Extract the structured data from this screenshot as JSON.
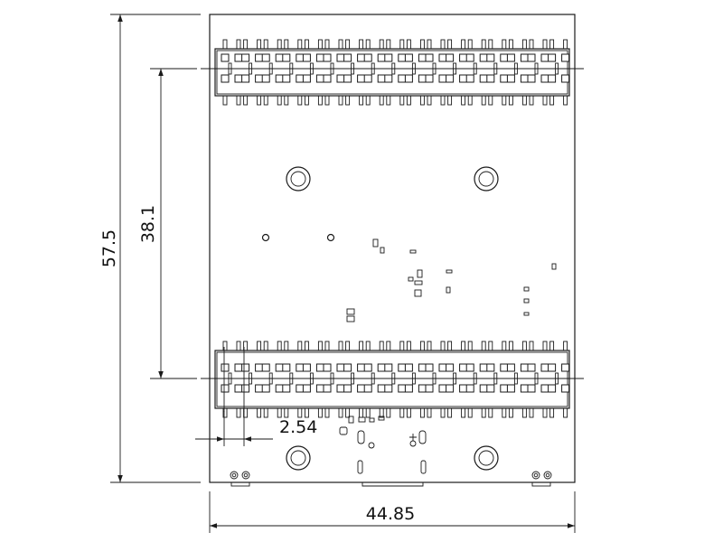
{
  "dimensions": {
    "total_height": "57.5",
    "header_spacing": "38.1",
    "pin_pitch": "2.54",
    "board_width": "44.85"
  },
  "colors": {
    "line": "#1a1a1a",
    "background": "#ffffff"
  },
  "headers": [
    {
      "name": "top-header",
      "pins_per_row": 17,
      "rows": 2
    },
    {
      "name": "bottom-header",
      "pins_per_row": 17,
      "rows": 2
    }
  ],
  "mounting_holes": 4
}
